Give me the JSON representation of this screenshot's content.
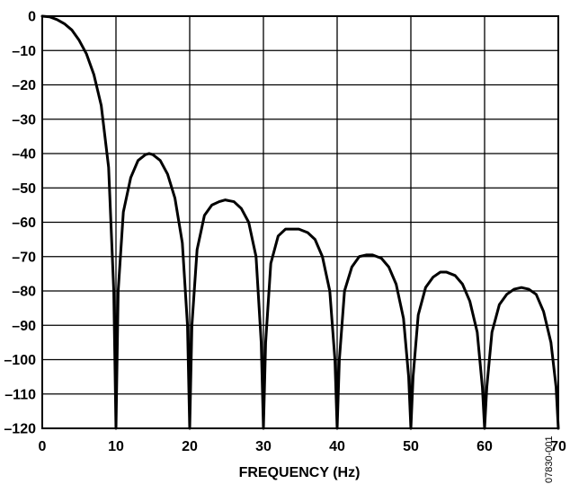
{
  "chart_data": {
    "type": "line",
    "title": "",
    "xlabel": "FREQUENCY (Hz)",
    "ylabel": "",
    "xlim": [
      0,
      70
    ],
    "ylim": [
      -120,
      0
    ],
    "x_ticks": [
      0,
      10,
      20,
      30,
      40,
      50,
      60,
      70
    ],
    "y_ticks": [
      0,
      -10,
      -20,
      -30,
      -40,
      -50,
      -60,
      -70,
      -80,
      -90,
      -100,
      -110,
      -120
    ],
    "x_tick_labels": [
      "0",
      "10",
      "20",
      "30",
      "40",
      "50",
      "60",
      "70"
    ],
    "y_tick_labels": [
      "0",
      "–10",
      "–20",
      "–30",
      "–40",
      "–50",
      "–60",
      "–70",
      "–80",
      "–90",
      "–100",
      "–110",
      "–120"
    ],
    "grid": true,
    "legend": "none",
    "line_color": "#000000",
    "series": [
      {
        "x": [
          0,
          1,
          2,
          3,
          4,
          5,
          6,
          7,
          8,
          9,
          9.7,
          10,
          10.3,
          11,
          12,
          13,
          14,
          14.5,
          15,
          16,
          17,
          18,
          19,
          19.7,
          20,
          20.3,
          21,
          22,
          23,
          24,
          24.8,
          26,
          27,
          28,
          29,
          29.7,
          30,
          30.3,
          31,
          32,
          33,
          34,
          34.8,
          36,
          37,
          38,
          39,
          39.7,
          40,
          40.3,
          41,
          42,
          43,
          44,
          44.8,
          46,
          47,
          48,
          49,
          49.7,
          50,
          50.3,
          51,
          52,
          53,
          54,
          54.8,
          56,
          57,
          58,
          59,
          59.7,
          60,
          60.3,
          61,
          62,
          63,
          64,
          65,
          66,
          67,
          68,
          69,
          69.7,
          70
        ],
        "y": [
          0,
          -0.2,
          -1,
          -2.2,
          -4,
          -7,
          -11,
          -17,
          -26,
          -44,
          -80,
          -120,
          -80,
          -57,
          -47,
          -42,
          -40.3,
          -40,
          -40.3,
          -42,
          -46,
          -53,
          -66,
          -90,
          -120,
          -90,
          -68,
          -58,
          -55,
          -54,
          -53.5,
          -54,
          -56,
          -60,
          -70,
          -95,
          -120,
          -95,
          -72,
          -64,
          -62,
          -62,
          -62,
          -63,
          -65,
          -70,
          -80,
          -100,
          -120,
          -100,
          -80,
          -73,
          -70,
          -69.5,
          -69.5,
          -70.5,
          -73,
          -78,
          -88,
          -105,
          -120,
          -105,
          -87,
          -79,
          -76,
          -74.5,
          -74.5,
          -75.5,
          -78,
          -83,
          -92,
          -108,
          -120,
          -108,
          -92,
          -84,
          -81,
          -79.5,
          -79,
          -79.5,
          -81,
          -86,
          -95,
          -108,
          -120
        ]
      }
    ]
  },
  "figure_code": "07830-001"
}
